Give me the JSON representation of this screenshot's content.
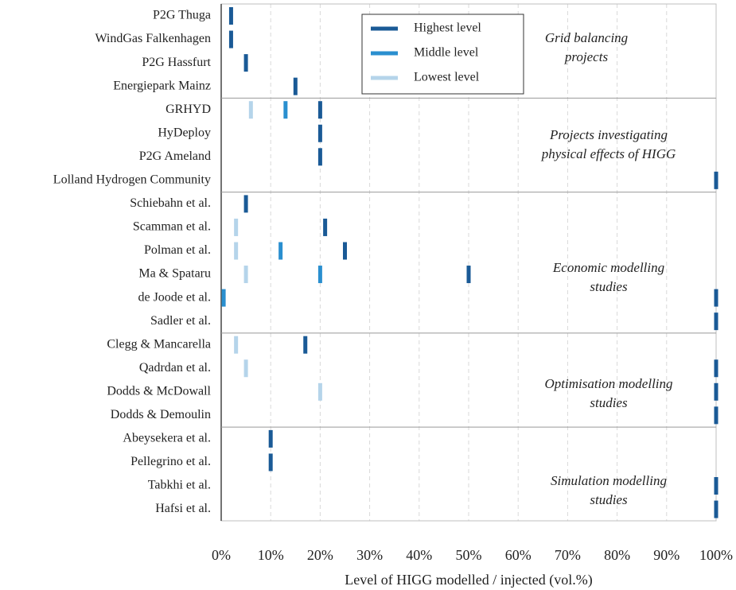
{
  "chart_data": {
    "type": "strip",
    "x_label": "Level of HIGG modelled / injected (vol.%)",
    "categories": [
      "P2G Thuga",
      "WindGas Falkenhagen",
      "P2G Hassfurt",
      "Energiepark Mainz",
      "GRHYD",
      "HyDeploy",
      "P2G Ameland",
      "Lolland Hydrogen Community",
      "Schiebahn et al.",
      "Scamman et al.",
      "Polman et al.",
      "Ma & Spataru",
      "de Joode et al.",
      "Sadler et al.",
      "Clegg & Mancarella",
      "Qadrdan et al.",
      "Dodds & McDowall",
      "Dodds & Demoulin",
      "Abeysekera et al.",
      "Pellegrino et al.",
      "Tabkhi et al.",
      "Hafsi et al."
    ],
    "series": [
      {
        "name": "Highest level",
        "color": "#1a5a96",
        "values": [
          2,
          2,
          5,
          15,
          20,
          20,
          20,
          100,
          5,
          21,
          25,
          50,
          100,
          100,
          17,
          100,
          100,
          100,
          10,
          10,
          100,
          100
        ]
      },
      {
        "name": "Middle level",
        "color": "#2a8fcf",
        "values": [
          null,
          null,
          null,
          null,
          13,
          null,
          null,
          null,
          null,
          null,
          12,
          20,
          0.5,
          null,
          null,
          null,
          null,
          null,
          null,
          null,
          null,
          null
        ]
      },
      {
        "name": "Lowest level",
        "color": "#b5d4ea",
        "values": [
          null,
          null,
          null,
          null,
          6,
          null,
          null,
          null,
          null,
          3,
          3,
          5,
          null,
          null,
          3,
          5,
          20,
          null,
          null,
          null,
          null,
          null
        ]
      }
    ],
    "annotations": [
      [
        "Grid balancing",
        "projects"
      ],
      [
        "Projects investigating",
        "physical effects of HIGG"
      ],
      [
        "Economic modelling",
        "studies"
      ],
      [
        "Optimisation modelling",
        "studies"
      ],
      [
        "Simulation modelling",
        "studies"
      ]
    ],
    "xlim": [
      0,
      100
    ],
    "xticks": [
      {
        "value": 0,
        "label": "0%"
      },
      {
        "value": 10,
        "label": "10%"
      },
      {
        "value": 20,
        "label": "20%"
      },
      {
        "value": 30,
        "label": "30%"
      },
      {
        "value": 40,
        "label": "40%"
      },
      {
        "value": 50,
        "label": "50%"
      },
      {
        "value": 60,
        "label": "60%"
      },
      {
        "value": 70,
        "label": "70%"
      },
      {
        "value": 80,
        "label": "80%"
      },
      {
        "value": 90,
        "label": "90%"
      },
      {
        "value": 100,
        "label": "100%"
      }
    ],
    "grid": true
  }
}
